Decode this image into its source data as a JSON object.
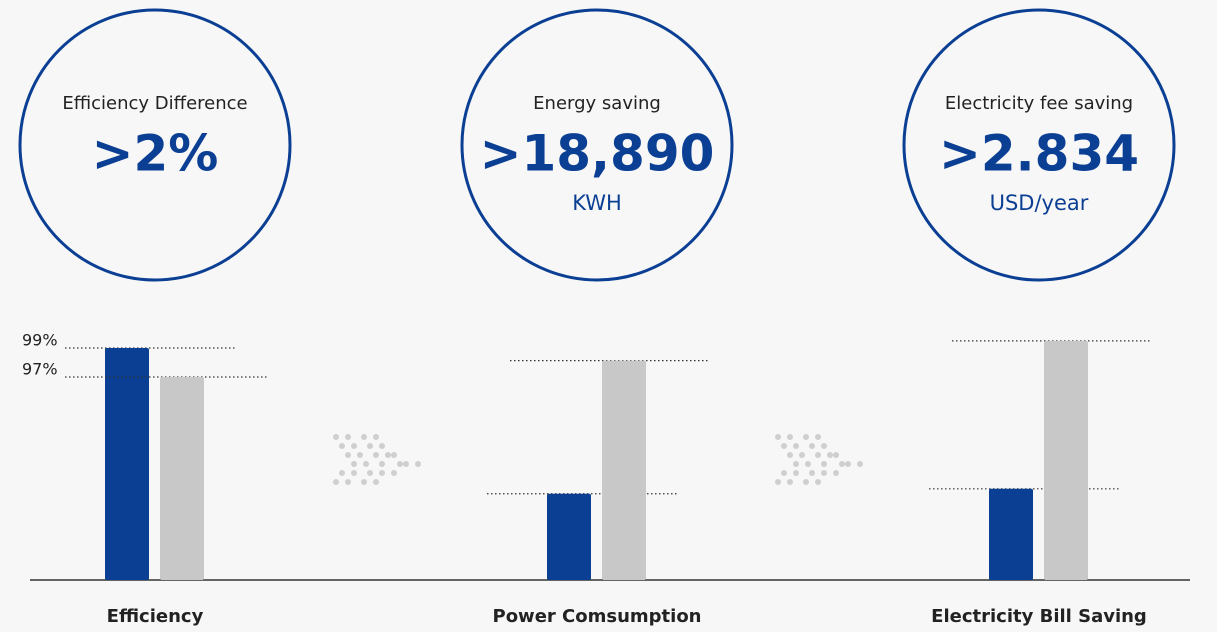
{
  "stats": [
    {
      "label": "Efficiency Difference",
      "value": ">2%"
    },
    {
      "label": "Energy saving",
      "value": ">18,890",
      "unit": "KWH"
    },
    {
      "label": "Electricity fee saving",
      "value": ">2.834",
      "unit": "USD/year"
    }
  ],
  "chart_data": [
    {
      "type": "bar",
      "title": "Efficiency",
      "categories": [
        null,
        null
      ],
      "values": [
        99,
        97
      ],
      "value_labels": [
        "99%",
        "97%"
      ],
      "colors": [
        "#0b3f94",
        "#c8c8c8"
      ],
      "ylim": [
        83,
        100
      ]
    },
    {
      "type": "bar",
      "title": "Power Comsumption",
      "categories": [
        null,
        null
      ],
      "values": [
        35,
        89
      ],
      "colors": [
        "#0b3f94",
        "#c8c8c8"
      ],
      "ylim": [
        0,
        100
      ]
    },
    {
      "type": "bar",
      "title": "Electricity Bill Saving",
      "categories": [
        null,
        null
      ],
      "values": [
        37,
        97
      ],
      "colors": [
        "#0b3f94",
        "#c8c8c8"
      ],
      "ylim": [
        0,
        100
      ]
    }
  ]
}
